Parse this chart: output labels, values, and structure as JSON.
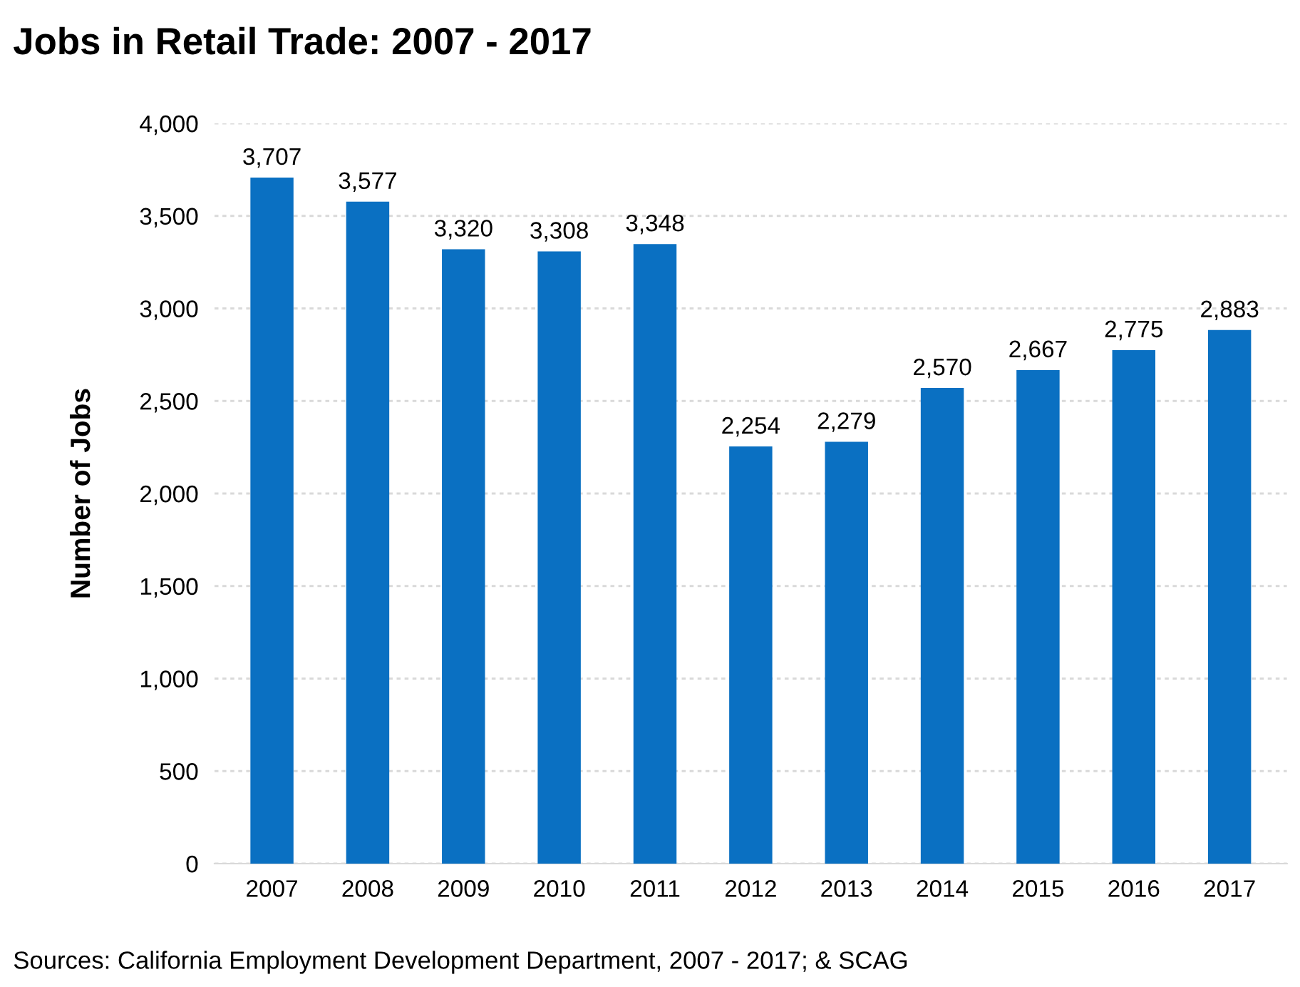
{
  "chart_data": {
    "type": "bar",
    "title": "Jobs in Retail Trade: 2007 - 2017",
    "ylabel": "Number of Jobs",
    "categories": [
      "2007",
      "2008",
      "2009",
      "2010",
      "2011",
      "2012",
      "2013",
      "2014",
      "2015",
      "2016",
      "2017"
    ],
    "values": [
      3707,
      3577,
      3320,
      3308,
      3348,
      2254,
      2279,
      2570,
      2667,
      2775,
      2883
    ],
    "value_labels": [
      "3,707",
      "3,577",
      "3,320",
      "3,308",
      "3,348",
      "2,254",
      "2,279",
      "2,570",
      "2,667",
      "2,775",
      "2,883"
    ],
    "color": "#0a70c2",
    "ylim": [
      0,
      4000
    ],
    "yticks": [
      0,
      {
        "value": 500,
        "label": "500"
      },
      {
        "value": 1000,
        "label": "1,000"
      },
      {
        "value": 1500,
        "label": "1,500"
      },
      {
        "value": 2000,
        "label": "2,000"
      },
      {
        "value": 2500,
        "label": "2,500"
      },
      {
        "value": 3000,
        "label": "3,000"
      },
      {
        "value": 3500,
        "label": "3,500"
      },
      {
        "value": 4000,
        "label": "4,000"
      }
    ],
    "grid": "y",
    "annotations": [
      "Sources: California Employment Development Department, 2007 - 2017; & SCAG"
    ]
  }
}
